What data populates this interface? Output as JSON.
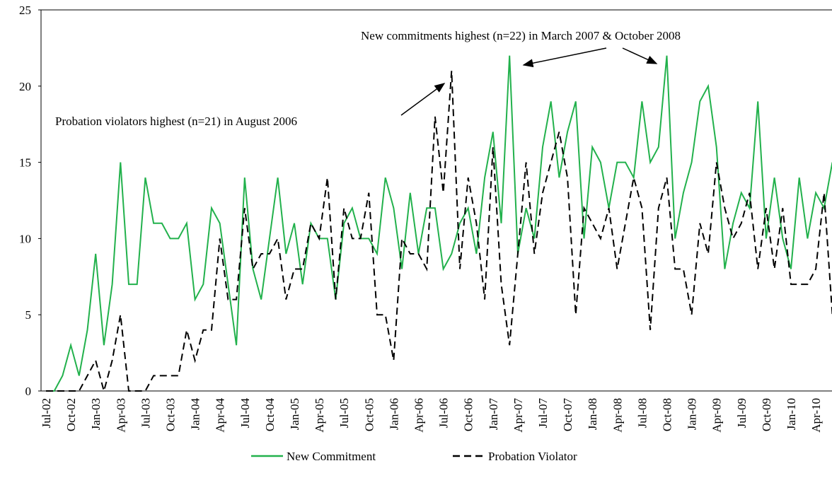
{
  "chart_data": {
    "type": "line",
    "annotations": [
      "New commitments highest (n=22) in March 2007 & October 2008",
      "Probation violators highest (n=21) in August 2006"
    ],
    "categories": [
      "Jul-02",
      null,
      null,
      "Oct-02",
      null,
      null,
      "Jan-03",
      null,
      null,
      "Apr-03",
      null,
      null,
      "Jul-03",
      null,
      null,
      "Oct-03",
      null,
      null,
      "Jan-04",
      null,
      null,
      "Apr-04",
      null,
      null,
      "Jul-04",
      null,
      null,
      "Oct-04",
      null,
      null,
      "Jan-05",
      null,
      null,
      "Apr-05",
      null,
      null,
      "Jul-05",
      null,
      null,
      "Oct-05",
      null,
      null,
      "Jan-06",
      null,
      null,
      "Apr-06",
      null,
      null,
      "Jul-06",
      null,
      null,
      "Oct-06",
      null,
      null,
      "Jan-07",
      null,
      null,
      "Apr-07",
      null,
      null,
      "Jul-07",
      null,
      null,
      "Oct-07",
      null,
      null,
      "Jan-08",
      null,
      null,
      "Apr-08",
      null,
      null,
      "Jul-08",
      null,
      null,
      "Oct-08",
      null,
      null,
      "Jan-09",
      null,
      null,
      "Apr-09",
      null,
      null,
      "Jul-09",
      null,
      null,
      "Oct-09",
      null,
      null,
      "Jan-10",
      null,
      null,
      "Apr-10",
      null,
      null
    ],
    "series": [
      {
        "name": "New Commitment",
        "color": "#22b14c",
        "dash": false,
        "values": [
          0,
          0,
          1,
          3,
          1,
          4,
          9,
          3,
          7,
          15,
          7,
          7,
          14,
          11,
          11,
          10,
          10,
          11,
          6,
          7,
          12,
          11,
          7,
          3,
          14,
          8,
          6,
          10,
          14,
          9,
          11,
          7,
          11,
          10,
          10,
          6,
          11,
          12,
          10,
          10,
          9,
          14,
          12,
          8,
          13,
          9,
          12,
          12,
          8,
          9,
          11,
          12,
          9,
          14,
          17,
          11,
          22,
          9,
          12,
          10,
          16,
          19,
          14,
          17,
          19,
          10,
          16,
          15,
          12,
          15,
          15,
          14,
          19,
          15,
          16,
          22,
          10,
          13,
          15,
          19,
          20,
          16,
          8,
          11,
          13,
          12,
          19,
          10,
          14,
          10,
          8,
          14,
          10,
          13,
          12,
          15
        ]
      },
      {
        "name": "Probation Violator",
        "color": "#000000",
        "dash": true,
        "values": [
          0,
          0,
          0,
          0,
          0,
          1,
          2,
          0,
          2,
          5,
          0,
          0,
          0,
          1,
          1,
          1,
          1,
          4,
          2,
          4,
          4,
          10,
          6,
          6,
          12,
          8,
          9,
          9,
          10,
          6,
          8,
          8,
          11,
          10,
          14,
          6,
          12,
          10,
          10,
          13,
          5,
          5,
          2,
          10,
          9,
          9,
          8,
          18,
          13,
          21,
          8,
          14,
          11,
          6,
          16,
          7,
          3,
          9,
          15,
          9,
          13,
          15,
          17,
          14,
          5,
          12,
          11,
          10,
          12,
          8,
          11,
          14,
          12,
          4,
          12,
          14,
          8,
          8,
          5,
          11,
          9,
          15,
          12,
          10,
          11,
          13,
          8,
          12,
          8,
          12,
          7,
          7,
          7,
          8,
          13,
          5
        ]
      }
    ],
    "ylim": [
      0,
      25
    ],
    "yticks": [
      0,
      5,
      10,
      15,
      20,
      25
    ],
    "grid": false,
    "legend": "bottom"
  }
}
